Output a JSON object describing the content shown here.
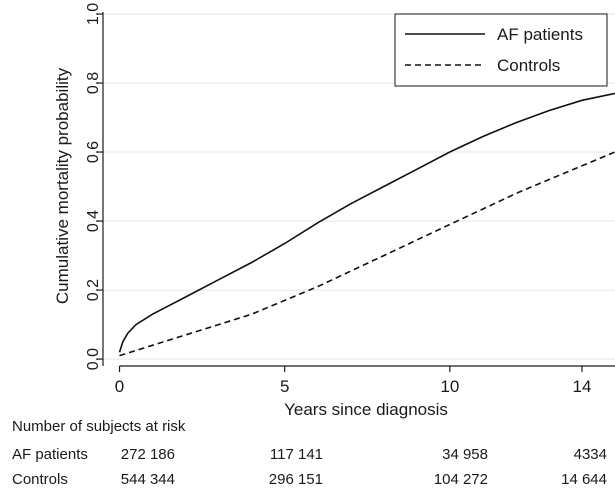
{
  "chart_data": {
    "type": "line",
    "xlabel": "Years since diagnosis",
    "ylabel": "Cumulative mortality probability",
    "xlim": [
      -0.5,
      15
    ],
    "ylim": [
      -0.02,
      1.0
    ],
    "xticks": [
      0,
      5,
      10,
      14
    ],
    "yticks": [
      0.0,
      0.2,
      0.4,
      0.6,
      0.8,
      1.0
    ],
    "ytick_labels": [
      "0.0",
      "0.2",
      "0.4",
      "0.6",
      "0.8",
      "1.0"
    ],
    "legend_position": "top-right",
    "grid": "horizontal reference lines at y ticks",
    "series": [
      {
        "name": "AF patients",
        "style": "solid",
        "x": [
          0,
          0.1,
          0.25,
          0.5,
          1,
          1.5,
          2,
          3,
          4,
          5,
          6,
          7,
          8,
          9,
          10,
          11,
          12,
          13,
          14,
          15
        ],
        "y": [
          0.02,
          0.05,
          0.075,
          0.1,
          0.13,
          0.155,
          0.18,
          0.23,
          0.28,
          0.335,
          0.395,
          0.45,
          0.5,
          0.55,
          0.6,
          0.645,
          0.685,
          0.72,
          0.75,
          0.77
        ]
      },
      {
        "name": "Controls",
        "style": "dashed",
        "x": [
          0,
          0.5,
          1,
          2,
          3,
          4,
          5,
          6,
          7,
          8,
          9,
          10,
          11,
          12,
          13,
          14,
          15
        ],
        "y": [
          0.01,
          0.025,
          0.04,
          0.07,
          0.1,
          0.13,
          0.17,
          0.21,
          0.255,
          0.3,
          0.345,
          0.39,
          0.435,
          0.48,
          0.52,
          0.56,
          0.6
        ]
      }
    ]
  },
  "risk_table": {
    "title": "Number of subjects at risk",
    "rows": [
      {
        "label": "AF patients",
        "values": [
          "272 186",
          "117 141",
          "34 958",
          "4334"
        ]
      },
      {
        "label": "Controls",
        "values": [
          "544 344",
          "296 151",
          "104 272",
          "14 644"
        ]
      }
    ]
  }
}
